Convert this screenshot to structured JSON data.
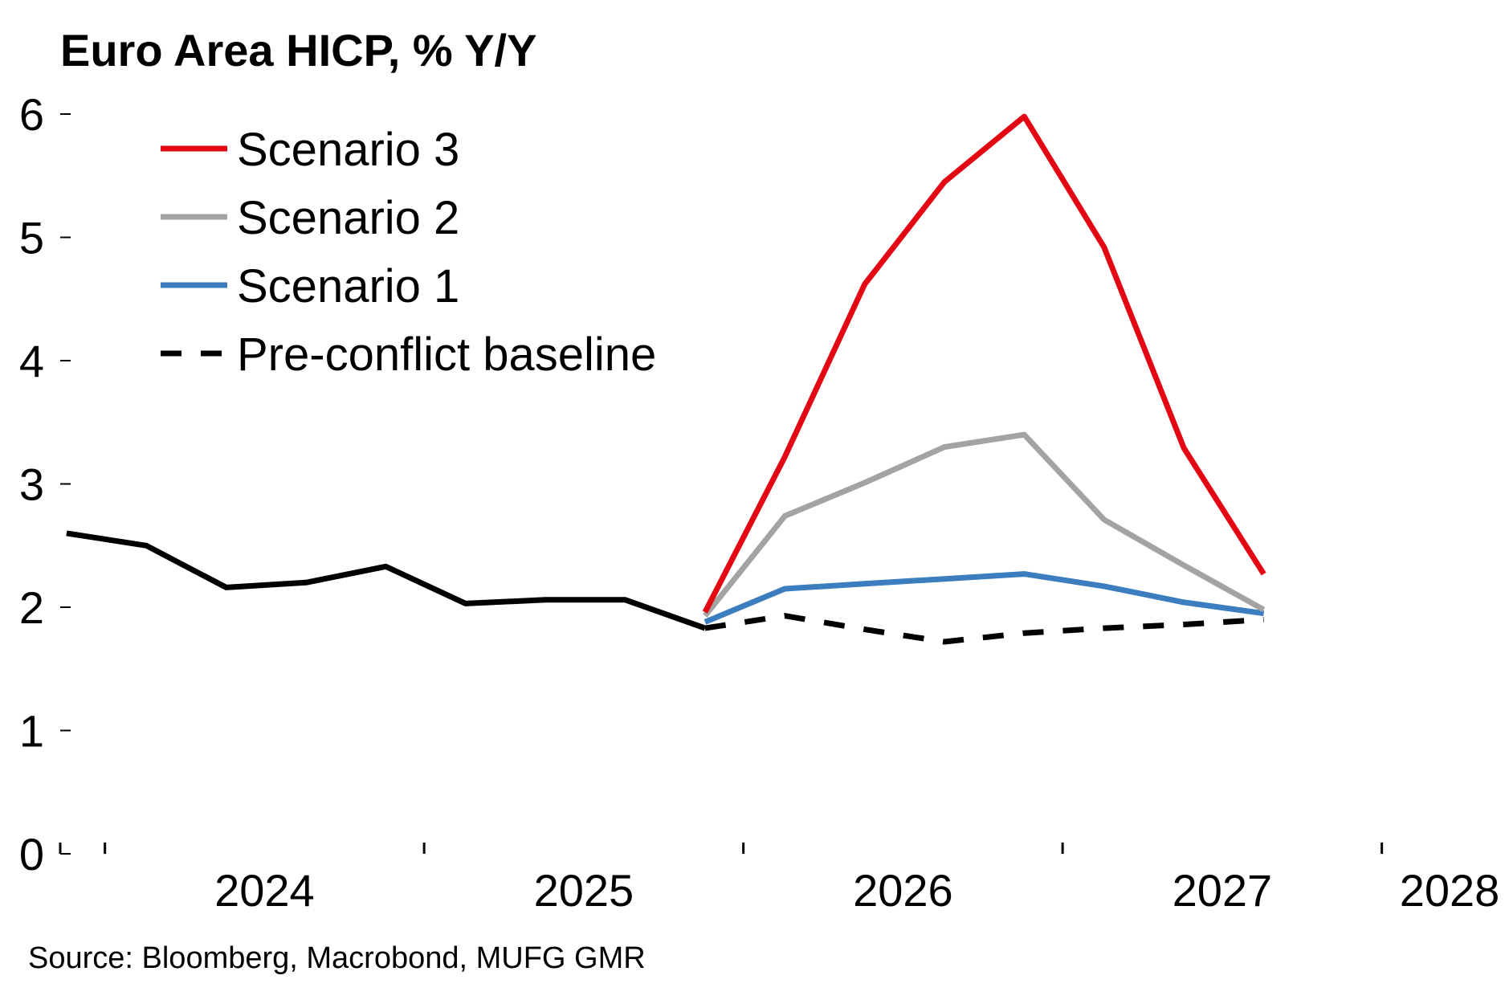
{
  "title": "Euro Area HICP, % Y/Y",
  "source": "Source: Bloomberg, Macrobond, MUFG GMR",
  "chart_data": {
    "type": "line",
    "title": "Euro Area HICP, % Y/Y",
    "xlabel": "",
    "ylabel": "",
    "ylim": [
      0,
      6
    ],
    "xlim": [
      2023.86,
      2028.25
    ],
    "yticks": [
      "0",
      "1",
      "2",
      "3",
      "4",
      "5",
      "6"
    ],
    "xticks": [
      "2024",
      "2025",
      "2026",
      "2027",
      "2028"
    ],
    "grid": false,
    "legend_position": "top-left",
    "history": {
      "name": "",
      "color": "#000000",
      "x": [
        2023.88,
        2024.13,
        2024.38,
        2024.63,
        2024.88,
        2025.13,
        2025.38,
        2025.63,
        2025.88
      ],
      "values": [
        2.6,
        2.5,
        2.16,
        2.2,
        2.33,
        2.03,
        2.06,
        2.06,
        1.83
      ]
    },
    "series": [
      {
        "name": "Scenario 3",
        "color": "#e30613",
        "dash": false,
        "x": [
          2025.88,
          2026.13,
          2026.38,
          2026.63,
          2026.88,
          2027.13,
          2027.38,
          2027.63
        ],
        "values": [
          1.96,
          3.22,
          4.62,
          5.45,
          5.98,
          4.92,
          3.29,
          2.27
        ]
      },
      {
        "name": "Scenario 2",
        "color": "#a3a3a3",
        "dash": false,
        "x": [
          2025.88,
          2026.13,
          2026.38,
          2026.63,
          2026.88,
          2027.13,
          2027.38,
          2027.63
        ],
        "values": [
          1.93,
          2.74,
          3.01,
          3.3,
          3.4,
          2.71,
          2.34,
          1.98
        ]
      },
      {
        "name": "Scenario 1",
        "color": "#3b7dbf",
        "dash": false,
        "x": [
          2025.88,
          2026.13,
          2026.38,
          2026.63,
          2026.88,
          2027.13,
          2027.38,
          2027.63
        ],
        "values": [
          1.88,
          2.15,
          2.19,
          2.23,
          2.27,
          2.17,
          2.04,
          1.95
        ]
      },
      {
        "name": "Pre-conflict baseline",
        "color": "#000000",
        "dash": true,
        "x": [
          2025.88,
          2026.13,
          2026.38,
          2026.63,
          2026.88,
          2027.13,
          2027.38,
          2027.63
        ],
        "values": [
          1.83,
          1.93,
          1.82,
          1.72,
          1.79,
          1.83,
          1.86,
          1.9
        ]
      }
    ]
  }
}
